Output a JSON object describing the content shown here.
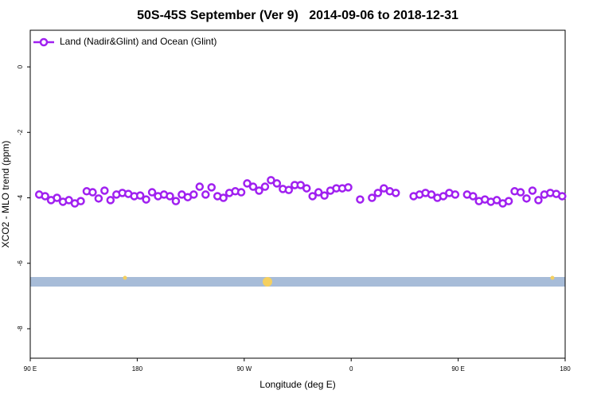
{
  "chart_data": {
    "type": "scatter",
    "title": "50S-45S September (Ver 9)   2014-09-06 to 2018-12-31",
    "x_label": "Longitude (deg E)",
    "y_label": "XCO2 - MLO trend (ppm)",
    "legend": "top-left",
    "xlim": [
      90,
      540
    ],
    "ylim": [
      -8.9,
      1.12
    ],
    "xticks": [
      {
        "value": 90,
        "label": "90 E"
      },
      {
        "value": 180,
        "label": "180"
      },
      {
        "value": 270,
        "label": "90 W"
      },
      {
        "value": 360,
        "label": "0"
      },
      {
        "value": 450,
        "label": "90 E"
      },
      {
        "value": 540,
        "label": "180"
      }
    ],
    "yticks": [
      0,
      -2,
      -4,
      -6,
      -8
    ],
    "series": [
      {
        "name": "Land (Nadir&Glint) and Ocean (Glint)",
        "color": "#a020f0",
        "x": [
          97.5,
          102.5,
          107.5,
          112.5,
          117.5,
          122.5,
          127.5,
          132.5,
          137.5,
          142.5,
          147.5,
          152.5,
          157.5,
          162.5,
          167.5,
          172.5,
          177.5,
          182.5,
          187.5,
          192.5,
          197.5,
          202.5,
          207.5,
          212.5,
          217.5,
          222.5,
          227.5,
          232.5,
          237.5,
          242.5,
          247.5,
          252.5,
          257.5,
          262.5,
          267.5,
          272.5,
          277.5,
          282.5,
          287.5,
          292.5,
          297.5,
          302.5,
          307.5,
          312.5,
          317.5,
          322.5,
          327.5,
          332.5,
          337.5,
          342.5,
          347.5,
          352.5,
          357.5,
          362.5,
          367.5,
          372.5,
          377.5,
          382.5,
          387.5,
          392.5,
          397.5,
          402.5,
          407.5,
          412.5,
          417.5,
          422.5,
          427.5,
          432.5,
          437.5,
          442.5,
          447.5,
          452.5,
          457.5,
          462.5,
          467.5,
          472.5,
          477.5,
          482.5,
          487.5,
          492.5,
          497.5,
          502.5,
          507.5,
          512.5,
          517.5,
          522.5,
          527.5,
          532.5,
          537.5
        ],
        "values": [
          -3.9,
          -3.95,
          -4.07,
          -4.0,
          -4.12,
          -4.07,
          -4.17,
          -4.1,
          -3.8,
          -3.83,
          -4.02,
          -3.78,
          -4.07,
          -3.9,
          -3.85,
          -3.88,
          -3.95,
          -3.93,
          -4.05,
          -3.83,
          -3.95,
          -3.9,
          -3.95,
          -4.1,
          -3.9,
          -3.98,
          -3.9,
          -3.66,
          -3.9,
          -3.68,
          -3.95,
          -4.0,
          -3.85,
          -3.8,
          -3.83,
          -3.56,
          -3.66,
          -3.78,
          -3.66,
          -3.46,
          -3.56,
          -3.73,
          -3.76,
          -3.61,
          -3.61,
          -3.71,
          -3.95,
          -3.83,
          -3.93,
          -3.78,
          -3.71,
          -3.71,
          -3.68,
          null,
          -4.05,
          null,
          -4.0,
          -3.85,
          -3.71,
          -3.8,
          -3.85,
          null,
          null,
          -3.95,
          -3.9,
          -3.85,
          -3.9,
          -4.0,
          -3.95,
          -3.85,
          -3.9,
          null,
          -3.9,
          -3.95,
          -4.1,
          -4.05,
          -4.12,
          -4.07,
          -4.17,
          -4.1,
          -3.8,
          -3.83,
          -4.02,
          -3.78,
          -4.07,
          -3.9,
          -3.85,
          -3.88,
          -3.95
        ]
      }
    ]
  }
}
